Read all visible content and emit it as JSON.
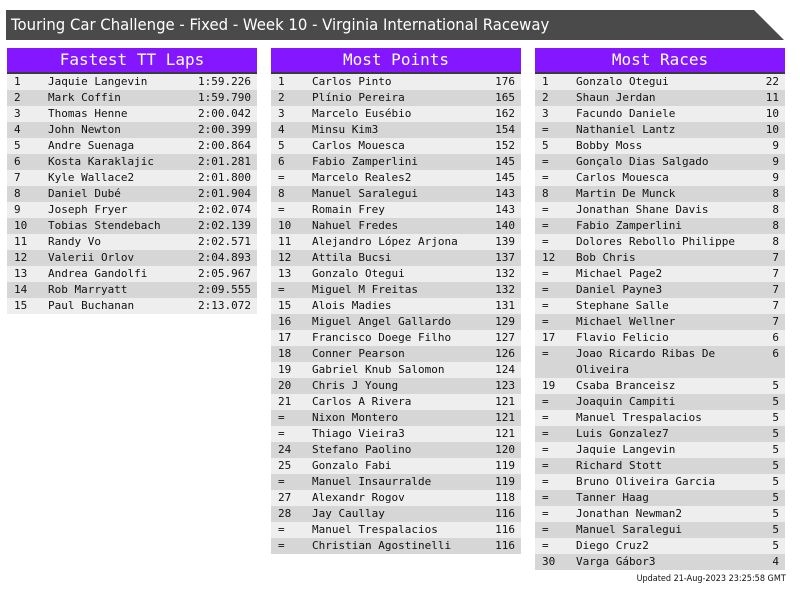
{
  "title": "Touring Car Challenge - Fixed - Week 10 - Virginia International Raceway",
  "colors": {
    "header": "#8417ff",
    "titlebar": "#4a4a4a",
    "row_light": "#eeeeee",
    "row_dark": "#d6d6d6"
  },
  "panels": [
    {
      "heading": "Fastest TT Laps",
      "rows": [
        {
          "rank": "1",
          "name": "Jaquie Langevin",
          "value": "1:59.226"
        },
        {
          "rank": "2",
          "name": "Mark Coffin",
          "value": "1:59.790"
        },
        {
          "rank": "3",
          "name": "Thomas Henne",
          "value": "2:00.042"
        },
        {
          "rank": "4",
          "name": "John Newton",
          "value": "2:00.399"
        },
        {
          "rank": "5",
          "name": "Andre Suenaga",
          "value": "2:00.864"
        },
        {
          "rank": "6",
          "name": "Kosta Karaklajic",
          "value": "2:01.281"
        },
        {
          "rank": "7",
          "name": "Kyle Wallace2",
          "value": "2:01.800"
        },
        {
          "rank": "8",
          "name": "Daniel Dubé",
          "value": "2:01.904"
        },
        {
          "rank": "9",
          "name": "Joseph Fryer",
          "value": "2:02.074"
        },
        {
          "rank": "10",
          "name": "Tobias Stendebach",
          "value": "2:02.139"
        },
        {
          "rank": "11",
          "name": "Randy Vo",
          "value": "2:02.571"
        },
        {
          "rank": "12",
          "name": "Valerii Orlov",
          "value": "2:04.893"
        },
        {
          "rank": "13",
          "name": "Andrea Gandolfi",
          "value": "2:05.967"
        },
        {
          "rank": "14",
          "name": "Rob Marryatt",
          "value": "2:09.555"
        },
        {
          "rank": "15",
          "name": "Paul Buchanan",
          "value": "2:13.072"
        }
      ]
    },
    {
      "heading": "Most Points",
      "rows": [
        {
          "rank": "1",
          "name": "Carlos Pinto",
          "value": "176"
        },
        {
          "rank": "2",
          "name": "Plínio Pereira",
          "value": "165"
        },
        {
          "rank": "3",
          "name": "Marcelo Eusébio",
          "value": "162"
        },
        {
          "rank": "4",
          "name": "Minsu Kim3",
          "value": "154"
        },
        {
          "rank": "5",
          "name": "Carlos Mouesca",
          "value": "152"
        },
        {
          "rank": "6",
          "name": "Fabio Zamperlini",
          "value": "145"
        },
        {
          "rank": "=",
          "name": "Marcelo Reales2",
          "value": "145"
        },
        {
          "rank": "8",
          "name": "Manuel Saralegui",
          "value": "143"
        },
        {
          "rank": "=",
          "name": "Romain Frey",
          "value": "143"
        },
        {
          "rank": "10",
          "name": "Nahuel Fredes",
          "value": "140"
        },
        {
          "rank": "11",
          "name": "Alejandro López Arjona",
          "value": "139"
        },
        {
          "rank": "12",
          "name": "Attila Bucsi",
          "value": "137"
        },
        {
          "rank": "13",
          "name": "Gonzalo Otegui",
          "value": "132"
        },
        {
          "rank": "=",
          "name": "Miguel M Freitas",
          "value": "132"
        },
        {
          "rank": "15",
          "name": "Alois Madies",
          "value": "131"
        },
        {
          "rank": "16",
          "name": "Miguel Angel Gallardo",
          "value": "129"
        },
        {
          "rank": "17",
          "name": "Francisco Doege Filho",
          "value": "127"
        },
        {
          "rank": "18",
          "name": "Conner Pearson",
          "value": "126"
        },
        {
          "rank": "19",
          "name": "Gabriel Knub Salomon",
          "value": "124"
        },
        {
          "rank": "20",
          "name": "Chris J Young",
          "value": "123"
        },
        {
          "rank": "21",
          "name": "Carlos A Rivera",
          "value": "121"
        },
        {
          "rank": "=",
          "name": "Nixon Montero",
          "value": "121"
        },
        {
          "rank": "=",
          "name": "Thiago Vieira3",
          "value": "121"
        },
        {
          "rank": "24",
          "name": "Stefano Paolino",
          "value": "120"
        },
        {
          "rank": "25",
          "name": "Gonzalo Fabi",
          "value": "119"
        },
        {
          "rank": "=",
          "name": "Manuel Insaurralde",
          "value": "119"
        },
        {
          "rank": "27",
          "name": "Alexandr Rogov",
          "value": "118"
        },
        {
          "rank": "28",
          "name": "Jay Caullay",
          "value": "116"
        },
        {
          "rank": "=",
          "name": "Manuel Trespalacios",
          "value": "116"
        },
        {
          "rank": "=",
          "name": "Christian Agostinelli",
          "value": "116"
        }
      ]
    },
    {
      "heading": "Most Races",
      "rows": [
        {
          "rank": "1",
          "name": "Gonzalo Otegui",
          "value": "22"
        },
        {
          "rank": "2",
          "name": "Shaun Jerdan",
          "value": "11"
        },
        {
          "rank": "3",
          "name": "Facundo Daniele",
          "value": "10"
        },
        {
          "rank": "=",
          "name": "Nathaniel Lantz",
          "value": "10"
        },
        {
          "rank": "5",
          "name": "Bobby Moss",
          "value": "9"
        },
        {
          "rank": "=",
          "name": "Gonçalo Dias Salgado",
          "value": "9"
        },
        {
          "rank": "=",
          "name": "Carlos Mouesca",
          "value": "9"
        },
        {
          "rank": "8",
          "name": "Martin De Munck",
          "value": "8"
        },
        {
          "rank": "=",
          "name": "Jonathan Shane Davis",
          "value": "8"
        },
        {
          "rank": "=",
          "name": "Fabio Zamperlini",
          "value": "8"
        },
        {
          "rank": "=",
          "name": "Dolores Rebollo Philippe",
          "value": "8"
        },
        {
          "rank": "12",
          "name": "Bob Chris",
          "value": "7"
        },
        {
          "rank": "=",
          "name": "Michael Page2",
          "value": "7"
        },
        {
          "rank": "=",
          "name": "Daniel Payne3",
          "value": "7"
        },
        {
          "rank": "=",
          "name": "Stephane Salle",
          "value": "7"
        },
        {
          "rank": "=",
          "name": "Michael Wellner",
          "value": "7"
        },
        {
          "rank": "17",
          "name": "Flavio Felicio",
          "value": "6"
        },
        {
          "rank": "=",
          "name": "Joao Ricardo Ribas De Oliveira",
          "value": "6"
        },
        {
          "rank": "19",
          "name": "Csaba Branceisz",
          "value": "5"
        },
        {
          "rank": "=",
          "name": "Joaquin Campiti",
          "value": "5"
        },
        {
          "rank": "=",
          "name": "Manuel Trespalacios",
          "value": "5"
        },
        {
          "rank": "=",
          "name": "Luis Gonzalez7",
          "value": "5"
        },
        {
          "rank": "=",
          "name": "Jaquie Langevin",
          "value": "5"
        },
        {
          "rank": "=",
          "name": "Richard Stott",
          "value": "5"
        },
        {
          "rank": "=",
          "name": "Bruno Oliveira Garcia",
          "value": "5"
        },
        {
          "rank": "=",
          "name": "Tanner Haag",
          "value": "5"
        },
        {
          "rank": "=",
          "name": "Jonathan Newman2",
          "value": "5"
        },
        {
          "rank": "=",
          "name": "Manuel Saralegui",
          "value": "5"
        },
        {
          "rank": "=",
          "name": "Diego Cruz2",
          "value": "5"
        },
        {
          "rank": "30",
          "name": "Varga Gábor3",
          "value": "4"
        }
      ]
    }
  ],
  "updated": "Updated 21-Aug-2023 23:25:58 GMT"
}
